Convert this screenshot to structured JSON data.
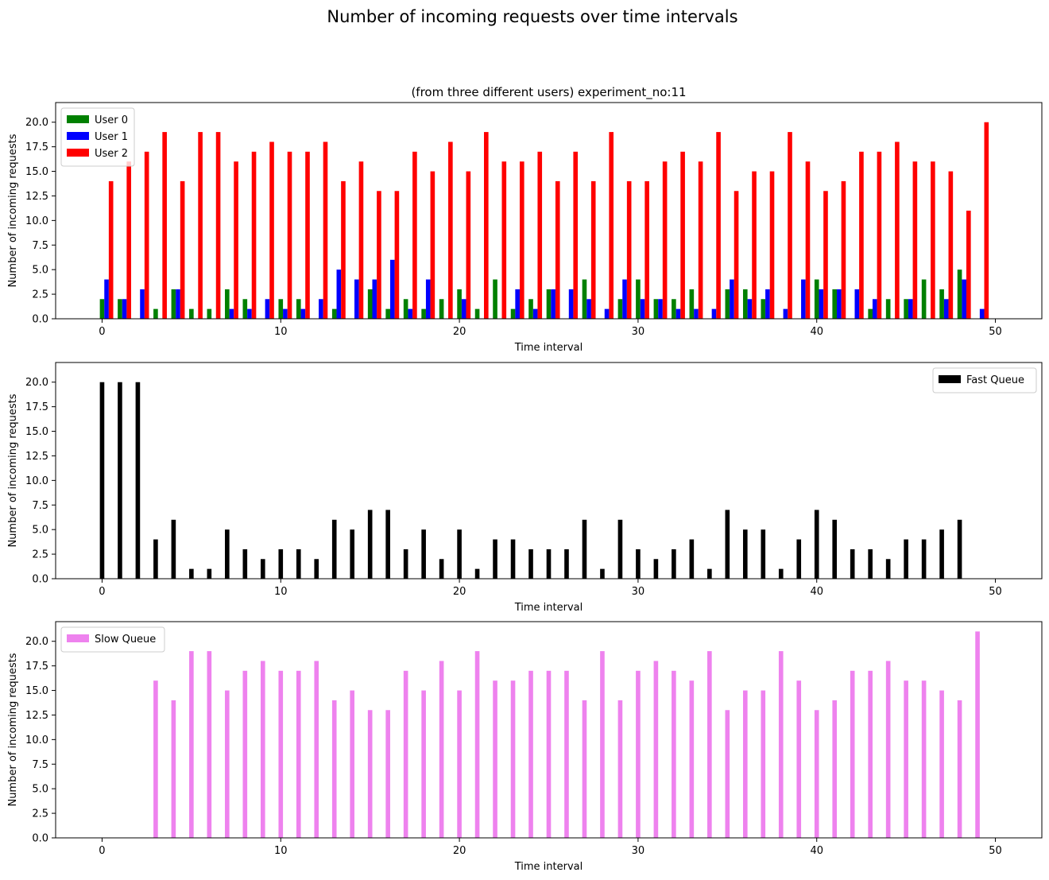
{
  "figure": {
    "suptitle": "Number of incoming requests over time intervals"
  },
  "chart_data": [
    {
      "type": "bar",
      "title": "(from three different users) experiment_no:11",
      "xlabel": "Time interval",
      "ylabel": "Number of incoming requests",
      "xlim": [
        -2.6,
        52.6
      ],
      "ylim": [
        0,
        22
      ],
      "xticks": [
        0,
        10,
        20,
        30,
        40,
        50
      ],
      "yticks": [
        0.0,
        2.5,
        5.0,
        7.5,
        10.0,
        12.5,
        15.0,
        17.5,
        20.0
      ],
      "ytick_labels": [
        "0.0",
        "2.5",
        "5.0",
        "7.5",
        "10.0",
        "12.5",
        "15.0",
        "17.5",
        "20.0"
      ],
      "legend_position": "upper left",
      "x": [
        0,
        1,
        2,
        3,
        4,
        5,
        6,
        7,
        8,
        9,
        10,
        11,
        12,
        13,
        14,
        15,
        16,
        17,
        18,
        19,
        20,
        21,
        22,
        23,
        24,
        25,
        26,
        27,
        28,
        29,
        30,
        31,
        32,
        33,
        34,
        35,
        36,
        37,
        38,
        39,
        40,
        41,
        42,
        43,
        44,
        45,
        46,
        47,
        48,
        49
      ],
      "series": [
        {
          "name": "User 0",
          "color": "#008000",
          "offset": 0,
          "values": [
            2,
            2,
            0,
            1,
            3,
            1,
            1,
            3,
            2,
            0,
            2,
            2,
            0,
            1,
            0,
            3,
            1,
            2,
            1,
            2,
            3,
            1,
            4,
            1,
            2,
            3,
            0,
            4,
            0,
            2,
            4,
            2,
            2,
            3,
            0,
            3,
            3,
            2,
            0,
            0,
            4,
            3,
            0,
            1,
            2,
            2,
            4,
            3,
            5,
            0
          ]
        },
        {
          "name": "User 1",
          "color": "#0000ff",
          "offset": 1,
          "values": [
            4,
            2,
            3,
            0,
            3,
            0,
            0,
            1,
            1,
            2,
            1,
            1,
            2,
            5,
            4,
            4,
            6,
            1,
            4,
            0,
            2,
            0,
            0,
            3,
            1,
            3,
            3,
            2,
            1,
            4,
            2,
            2,
            1,
            1,
            1,
            4,
            2,
            3,
            1,
            4,
            3,
            3,
            3,
            2,
            0,
            2,
            0,
            2,
            4,
            1
          ]
        },
        {
          "name": "User 2",
          "color": "#ff0000",
          "offset": 2,
          "values": [
            14,
            16,
            17,
            19,
            14,
            19,
            19,
            16,
            17,
            18,
            17,
            17,
            18,
            14,
            16,
            13,
            13,
            17,
            15,
            18,
            15,
            19,
            16,
            16,
            17,
            14,
            17,
            14,
            19,
            14,
            14,
            16,
            17,
            16,
            19,
            13,
            15,
            15,
            19,
            16,
            13,
            14,
            17,
            17,
            18,
            16,
            16,
            15,
            11,
            20
          ]
        }
      ]
    },
    {
      "type": "bar",
      "title": "",
      "xlabel": "Time interval",
      "ylabel": "Number of incoming requests",
      "xlim": [
        -2.6,
        52.6
      ],
      "ylim": [
        0,
        22
      ],
      "xticks": [
        0,
        10,
        20,
        30,
        40,
        50
      ],
      "yticks": [
        0.0,
        2.5,
        5.0,
        7.5,
        10.0,
        12.5,
        15.0,
        17.5,
        20.0
      ],
      "ytick_labels": [
        "0.0",
        "2.5",
        "5.0",
        "7.5",
        "10.0",
        "12.5",
        "15.0",
        "17.5",
        "20.0"
      ],
      "legend_position": "upper right",
      "x": [
        0,
        1,
        2,
        3,
        4,
        5,
        6,
        7,
        8,
        9,
        10,
        11,
        12,
        13,
        14,
        15,
        16,
        17,
        18,
        19,
        20,
        21,
        22,
        23,
        24,
        25,
        26,
        27,
        28,
        29,
        30,
        31,
        32,
        33,
        34,
        35,
        36,
        37,
        38,
        39,
        40,
        41,
        42,
        43,
        44,
        45,
        46,
        47,
        48
      ],
      "series": [
        {
          "name": "Fast Queue",
          "color": "#000000",
          "offset": 0,
          "values": [
            20,
            20,
            20,
            4,
            6,
            1,
            1,
            5,
            3,
            2,
            3,
            3,
            2,
            6,
            5,
            7,
            7,
            3,
            5,
            2,
            5,
            1,
            4,
            4,
            3,
            3,
            3,
            6,
            1,
            6,
            3,
            2,
            3,
            4,
            1,
            7,
            5,
            5,
            1,
            4,
            7,
            6,
            3,
            3,
            2,
            4,
            4,
            5,
            6
          ]
        }
      ]
    },
    {
      "type": "bar",
      "title": "",
      "xlabel": "Time interval",
      "ylabel": "Number of incoming requests",
      "xlim": [
        -2.6,
        52.6
      ],
      "ylim": [
        0,
        22
      ],
      "xticks": [
        0,
        10,
        20,
        30,
        40,
        50
      ],
      "yticks": [
        0.0,
        2.5,
        5.0,
        7.5,
        10.0,
        12.5,
        15.0,
        17.5,
        20.0
      ],
      "ytick_labels": [
        "0.0",
        "2.5",
        "5.0",
        "7.5",
        "10.0",
        "12.5",
        "15.0",
        "17.5",
        "20.0"
      ],
      "legend_position": "upper left",
      "x": [
        0,
        1,
        2,
        3,
        4,
        5,
        6,
        7,
        8,
        9,
        10,
        11,
        12,
        13,
        14,
        15,
        16,
        17,
        18,
        19,
        20,
        21,
        22,
        23,
        24,
        25,
        26,
        27,
        28,
        29,
        30,
        31,
        32,
        33,
        34,
        35,
        36,
        37,
        38,
        39,
        40,
        41,
        42,
        43,
        44,
        45,
        46,
        47,
        48,
        49
      ],
      "series": [
        {
          "name": "Slow Queue",
          "color": "#ee82ee",
          "offset": 0,
          "values": [
            0,
            0,
            0,
            16,
            14,
            19,
            19,
            15,
            17,
            18,
            17,
            17,
            18,
            14,
            15,
            13,
            13,
            17,
            15,
            18,
            15,
            19,
            16,
            16,
            17,
            17,
            17,
            14,
            19,
            14,
            17,
            18,
            17,
            16,
            19,
            13,
            15,
            15,
            19,
            16,
            13,
            14,
            17,
            17,
            18,
            16,
            16,
            15,
            14,
            21
          ]
        }
      ]
    }
  ]
}
